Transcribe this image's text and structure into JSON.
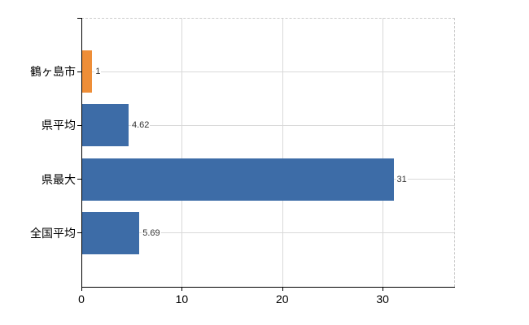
{
  "chart_data": {
    "type": "bar",
    "orientation": "horizontal",
    "title": "",
    "xlabel": "",
    "ylabel": "",
    "categories": [
      "鶴ヶ島市",
      "県平均",
      "県最大",
      "全国平均"
    ],
    "values": [
      1,
      4.62,
      31,
      5.69
    ],
    "value_labels": [
      "1",
      "4.62",
      "31",
      "5.69"
    ],
    "x_ticks": [
      0,
      10,
      20,
      30
    ],
    "xlim": [
      0,
      37.2
    ],
    "grid": true,
    "legend": "none",
    "bar_colors": [
      "#ee8e38",
      "#3d6ca7",
      "#3d6ca7",
      "#3d6ca7"
    ],
    "gridline_color": "#d9d9d9",
    "frame_dash_color": "#cccccc",
    "axis_color": "#000000",
    "category_label_color": "#000000",
    "value_label_color": "#333333",
    "background_color": "#ffffff"
  }
}
